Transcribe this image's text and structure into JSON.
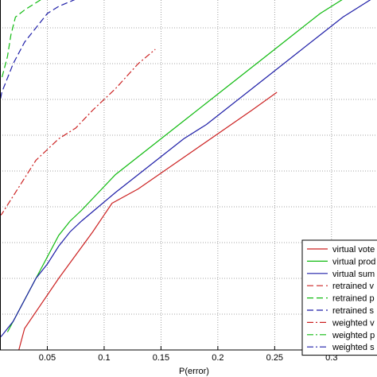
{
  "chart_data": {
    "type": "line",
    "title": "",
    "xlabel": "P(error)",
    "ylabel": "",
    "xlim": [
      0,
      0.34
    ],
    "ylim": [
      0,
      1
    ],
    "grid": true,
    "legend_position": "bottom-right",
    "x_ticks": [
      "0.05",
      "0.1",
      "0.15",
      "0.2",
      "0.25",
      "0.3"
    ],
    "x_tick_values": [
      0.05,
      0.1,
      0.15,
      0.2,
      0.25,
      0.3
    ],
    "series": [
      {
        "name": "virtual vote",
        "color": "#cc2222",
        "dash": "solid",
        "points": [
          [
            0.025,
            0.0
          ],
          [
            0.03,
            0.06
          ],
          [
            0.06,
            0.2
          ],
          [
            0.09,
            0.33
          ],
          [
            0.107,
            0.41
          ],
          [
            0.13,
            0.45
          ],
          [
            0.18,
            0.56
          ],
          [
            0.23,
            0.67
          ],
          [
            0.252,
            0.72
          ]
        ]
      },
      {
        "name": "virtual prod",
        "color": "#11bb11",
        "dash": "solid",
        "points": [
          [
            0.015,
            0.05
          ],
          [
            0.02,
            0.08
          ],
          [
            0.03,
            0.14
          ],
          [
            0.04,
            0.2
          ],
          [
            0.05,
            0.26
          ],
          [
            0.06,
            0.32
          ],
          [
            0.07,
            0.36
          ],
          [
            0.08,
            0.39
          ],
          [
            0.095,
            0.44
          ],
          [
            0.11,
            0.49
          ],
          [
            0.13,
            0.54
          ],
          [
            0.15,
            0.59
          ],
          [
            0.17,
            0.64
          ],
          [
            0.19,
            0.69
          ],
          [
            0.21,
            0.74
          ],
          [
            0.23,
            0.79
          ],
          [
            0.25,
            0.84
          ],
          [
            0.27,
            0.89
          ],
          [
            0.29,
            0.94
          ],
          [
            0.31,
            0.98
          ],
          [
            0.33,
            1.0
          ]
        ]
      },
      {
        "name": "virtual sum",
        "color": "#1f1fa8",
        "dash": "solid",
        "points": [
          [
            0.0,
            0.01
          ],
          [
            0.01,
            0.04
          ],
          [
            0.02,
            0.08
          ],
          [
            0.03,
            0.14
          ],
          [
            0.04,
            0.2
          ],
          [
            0.05,
            0.24
          ],
          [
            0.06,
            0.29
          ],
          [
            0.07,
            0.33
          ],
          [
            0.08,
            0.36
          ],
          [
            0.095,
            0.4
          ],
          [
            0.11,
            0.44
          ],
          [
            0.13,
            0.49
          ],
          [
            0.15,
            0.54
          ],
          [
            0.17,
            0.59
          ],
          [
            0.19,
            0.63
          ],
          [
            0.21,
            0.68
          ],
          [
            0.23,
            0.73
          ],
          [
            0.25,
            0.78
          ],
          [
            0.27,
            0.83
          ],
          [
            0.29,
            0.88
          ],
          [
            0.31,
            0.93
          ],
          [
            0.33,
            0.97
          ],
          [
            0.345,
            1.0
          ]
        ]
      },
      {
        "name": "retrained vote",
        "color": "#cc2222",
        "dash": "8,4",
        "points": [
          [
            0.0,
            0.0
          ],
          [
            0.0,
            0.0
          ]
        ]
      },
      {
        "name": "retrained prod",
        "color": "#11bb11",
        "dash": "8,4",
        "points": [
          [
            0.0,
            0.72
          ],
          [
            0.01,
            0.76
          ],
          [
            0.015,
            0.82
          ],
          [
            0.018,
            0.88
          ],
          [
            0.022,
            0.93
          ],
          [
            0.03,
            0.95
          ],
          [
            0.04,
            0.97
          ],
          [
            0.05,
            0.99
          ],
          [
            0.06,
            1.0
          ]
        ]
      },
      {
        "name": "retrained sum",
        "color": "#1f1fa8",
        "dash": "8,4",
        "points": [
          [
            0.0,
            0.6
          ],
          [
            0.005,
            0.64
          ],
          [
            0.01,
            0.72
          ],
          [
            0.02,
            0.8
          ],
          [
            0.03,
            0.86
          ],
          [
            0.04,
            0.9
          ],
          [
            0.05,
            0.94
          ],
          [
            0.06,
            0.96
          ],
          [
            0.075,
            0.98
          ],
          [
            0.09,
            1.0
          ]
        ]
      },
      {
        "name": "weighted vote",
        "color": "#cc2222",
        "dash": "8,3,2,3",
        "points": [
          [
            0.0,
            0.35
          ],
          [
            0.01,
            0.38
          ],
          [
            0.02,
            0.43
          ],
          [
            0.03,
            0.48
          ],
          [
            0.04,
            0.53
          ],
          [
            0.05,
            0.56
          ],
          [
            0.06,
            0.59
          ],
          [
            0.075,
            0.62
          ],
          [
            0.09,
            0.67
          ],
          [
            0.11,
            0.73
          ],
          [
            0.13,
            0.8
          ],
          [
            0.145,
            0.84
          ]
        ]
      },
      {
        "name": "weighted prod",
        "color": "#11bb11",
        "dash": "8,3,2,3",
        "points": [
          [
            0.0,
            0.0
          ],
          [
            0.0,
            0.0
          ]
        ]
      },
      {
        "name": "weighted sum",
        "color": "#1f1fa8",
        "dash": "8,3,2,3",
        "points": [
          [
            0.0,
            0.0
          ],
          [
            0.0,
            0.0
          ]
        ]
      }
    ]
  },
  "legend": {
    "items": [
      {
        "label": "virtual vote",
        "color": "#cc2222",
        "dash": "solid"
      },
      {
        "label": "virtual prod",
        "color": "#11bb11",
        "dash": "solid"
      },
      {
        "label": "virtual sum",
        "color": "#1f1fa8",
        "dash": "solid"
      },
      {
        "label": "retrained v",
        "color": "#cc2222",
        "dash": "8,4"
      },
      {
        "label": "retrained p",
        "color": "#11bb11",
        "dash": "8,4"
      },
      {
        "label": "retrained s",
        "color": "#1f1fa8",
        "dash": "8,4"
      },
      {
        "label": "weighted v",
        "color": "#cc2222",
        "dash": "8,3,2,3"
      },
      {
        "label": "weighted p",
        "color": "#11bb11",
        "dash": "8,3,2,3"
      },
      {
        "label": "weighted s",
        "color": "#1f1fa8",
        "dash": "8,3,2,3"
      }
    ]
  }
}
